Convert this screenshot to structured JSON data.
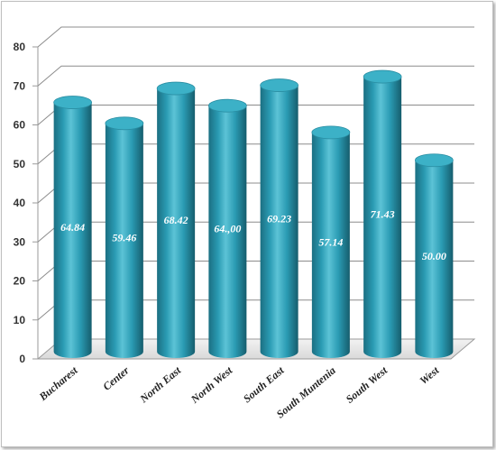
{
  "chart_data": {
    "type": "bar",
    "title": "",
    "xlabel": "",
    "ylabel": "",
    "categories": [
      "Bucharest",
      "Center",
      "North East",
      "North West",
      "South East",
      "South Muntenia",
      "South West",
      "West"
    ],
    "values": [
      64.84,
      59.46,
      68.42,
      64.0,
      69.23,
      57.14,
      71.43,
      50.0
    ],
    "data_labels": [
      "64.84",
      "59.46",
      "68.42",
      "64.,00",
      "69.23",
      "57.14",
      "71.43",
      "50.00"
    ],
    "ylim": [
      0,
      80
    ],
    "yticks": [
      "0",
      "10",
      "20",
      "30",
      "40",
      "50",
      "60",
      "70",
      "80"
    ],
    "grid": true,
    "legend": "none",
    "style": "3d-cylinder",
    "colors": {
      "bar": "#2a9bb3",
      "bar_light": "#5cc3d6",
      "bar_dark": "#1b6f82",
      "top": "#3cb1c7",
      "grid": "#8c8c8c"
    }
  }
}
